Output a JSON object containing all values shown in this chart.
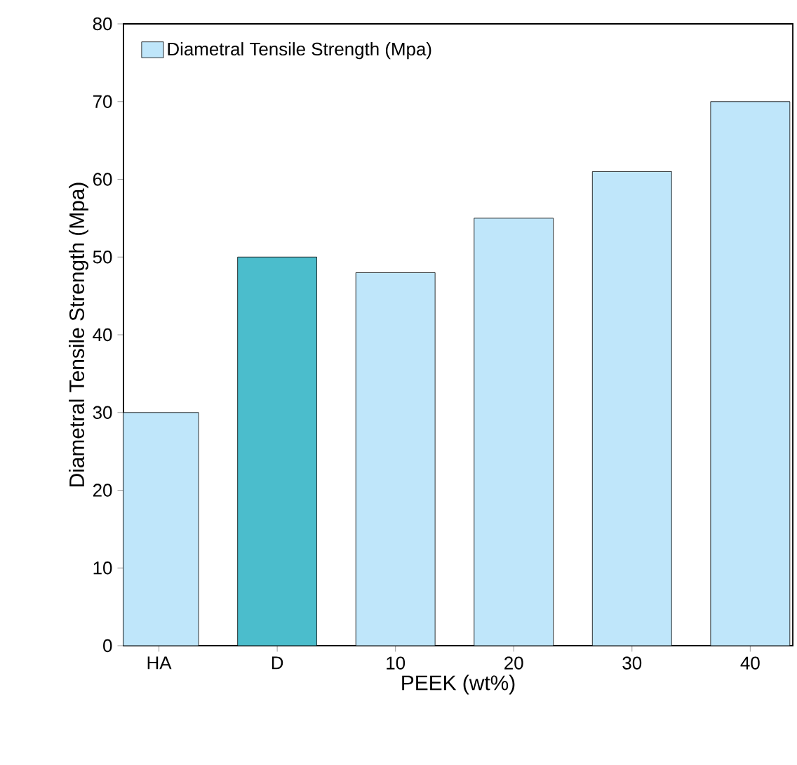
{
  "chart_data": {
    "type": "bar",
    "xlabel": "PEEK (wt%)",
    "ylabel": "Diametral Tensile Strength (Mpa)",
    "categories": [
      "HA",
      "D",
      "10",
      "20",
      "30",
      "40"
    ],
    "series": [
      {
        "name": "Diametral Tensile Strength (Mpa)",
        "color": "#bfe6fa",
        "colors": [
          "#bfe6fa",
          "#4bbdcc",
          "#bfe6fa",
          "#bfe6fa",
          "#bfe6fa",
          "#bfe6fa"
        ],
        "values": [
          30,
          50,
          48,
          55,
          61,
          70
        ]
      }
    ],
    "ylim": [
      0,
      80
    ],
    "yticks": [
      0,
      10,
      20,
      30,
      40,
      50,
      60,
      70,
      80
    ],
    "legend": "top left",
    "grid": false
  }
}
